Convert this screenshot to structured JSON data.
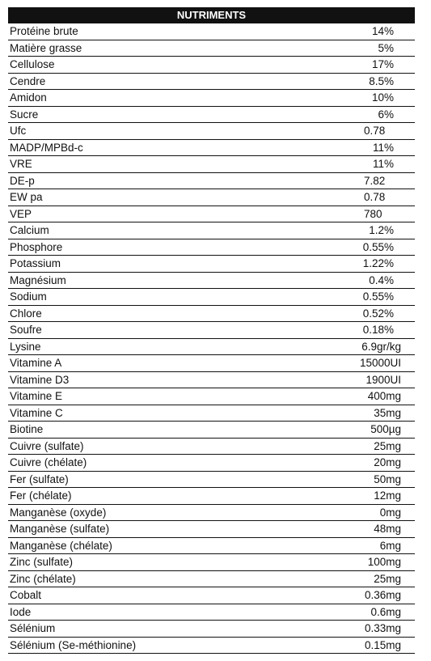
{
  "table": {
    "header": "NUTRIMENTS",
    "rows": [
      [
        "Protéine brute",
        "14%"
      ],
      [
        "Matière grasse",
        "5%"
      ],
      [
        "Cellulose",
        "17%"
      ],
      [
        "Cendre",
        "8.5%"
      ],
      [
        "Amidon",
        "10%"
      ],
      [
        "Sucre",
        "6%"
      ],
      [
        "Ufc",
        "0.78"
      ],
      [
        "MADP/MPBd-c",
        "11%"
      ],
      [
        "VRE",
        "11%"
      ],
      [
        "DE-p",
        "7.82"
      ],
      [
        "EW pa",
        "0.78"
      ],
      [
        "VEP",
        "780"
      ],
      [
        "Calcium",
        "1.2%"
      ],
      [
        "Phosphore",
        "0.55%"
      ],
      [
        "Potassium",
        "1.22%"
      ],
      [
        "Magnésium",
        "0.4%"
      ],
      [
        "Sodium",
        "0.55%"
      ],
      [
        "Chlore",
        "0.52%"
      ],
      [
        "Soufre",
        "0.18%"
      ],
      [
        "Lysine",
        "6.9gr/kg"
      ],
      [
        "Vitamine A",
        "15000UI"
      ],
      [
        "Vitamine D3",
        "1900UI"
      ],
      [
        "Vitamine E",
        "400mg"
      ],
      [
        "Vitamine C",
        "35mg"
      ],
      [
        "Biotine",
        "500µg"
      ],
      [
        "Cuivre (sulfate)",
        "25mg"
      ],
      [
        "Cuivre (chélate)",
        "20mg"
      ],
      [
        "Fer (sulfate)",
        "50mg"
      ],
      [
        "Fer (chélate)",
        "12mg"
      ],
      [
        "Manganèse (oxyde)",
        "0mg"
      ],
      [
        "Manganèse (sulfate)",
        "48mg"
      ],
      [
        "Manganèse (chélate)",
        "6mg"
      ],
      [
        "Zinc (sulfate)",
        "100mg"
      ],
      [
        "Zinc (chélate)",
        "25mg"
      ],
      [
        "Cobalt",
        "0.36mg"
      ],
      [
        "Iode",
        "0.6mg"
      ],
      [
        "Sélénium",
        "0.33mg"
      ],
      [
        "Sélénium (Se-méthionine)",
        "0.15mg"
      ]
    ]
  }
}
